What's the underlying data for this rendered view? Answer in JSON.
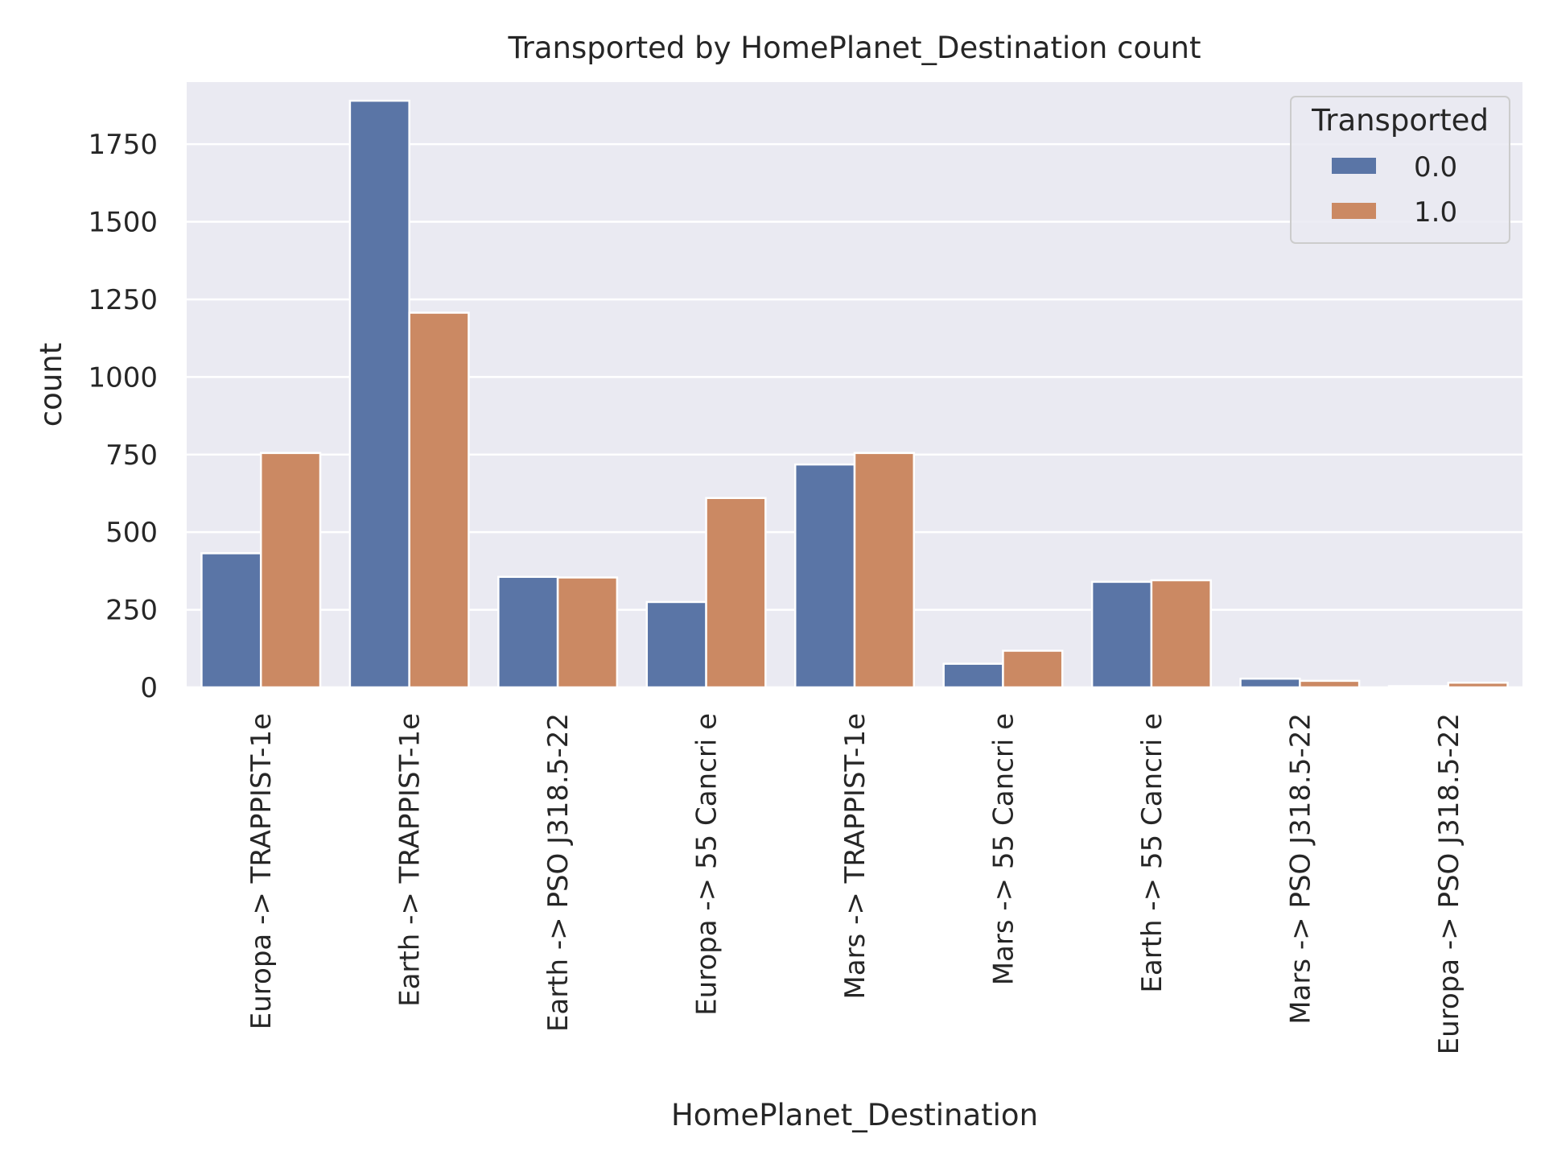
{
  "chart_data": {
    "type": "bar",
    "title": "Transported by HomePlanet_Destination count",
    "xlabel": "HomePlanet_Destination",
    "ylabel": "count",
    "ylim": [
      0,
      1950
    ],
    "yticks": [
      0,
      250,
      500,
      750,
      1000,
      1250,
      1500,
      1750
    ],
    "grid": true,
    "legend": {
      "title": "Transported",
      "placement": "top-right"
    },
    "categories": [
      "Europa -> TRAPPIST-1e",
      "Earth -> TRAPPIST-1e",
      "Earth -> PSO J318.5-22",
      "Europa -> 55 Cancri e",
      "Mars -> TRAPPIST-1e",
      "Mars -> 55 Cancri e",
      "Earth -> 55 Cancri e",
      "Mars -> PSO J318.5-22",
      "Europa -> PSO J318.5-22"
    ],
    "series": [
      {
        "name": "0.0",
        "color": "#5a75a6",
        "values": [
          432,
          1890,
          356,
          275,
          718,
          76,
          340,
          28,
          4
        ]
      },
      {
        "name": "1.0",
        "color": "#cb8963",
        "values": [
          755,
          1207,
          354,
          610,
          755,
          118,
          345,
          21,
          15
        ]
      }
    ],
    "colors": {
      "plot_background": "#eaeaf2",
      "grid": "#ffffff",
      "text": "#262626"
    }
  }
}
